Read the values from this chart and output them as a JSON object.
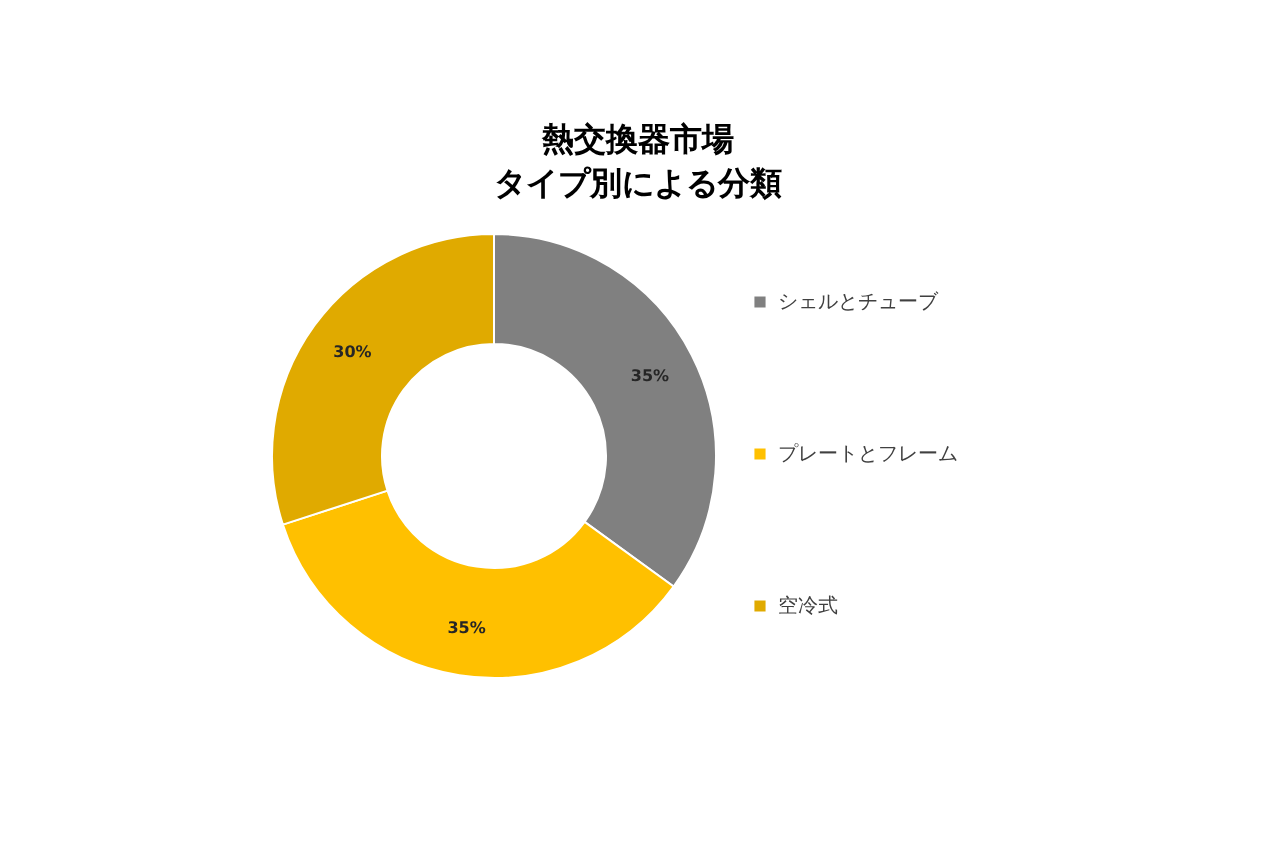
{
  "chart_data": {
    "type": "donut",
    "title": [
      "熱交換器市場",
      "タイプ別による分類"
    ],
    "categories": [
      "シェルとチューブ",
      "プレートとフレーム",
      "空冷式"
    ],
    "values": [
      35,
      35,
      30
    ],
    "colors": [
      "#808080",
      "#ffc000",
      "#e0aa00"
    ],
    "value_labels": [
      "35%",
      "35%",
      "30%"
    ],
    "legend": "right"
  }
}
